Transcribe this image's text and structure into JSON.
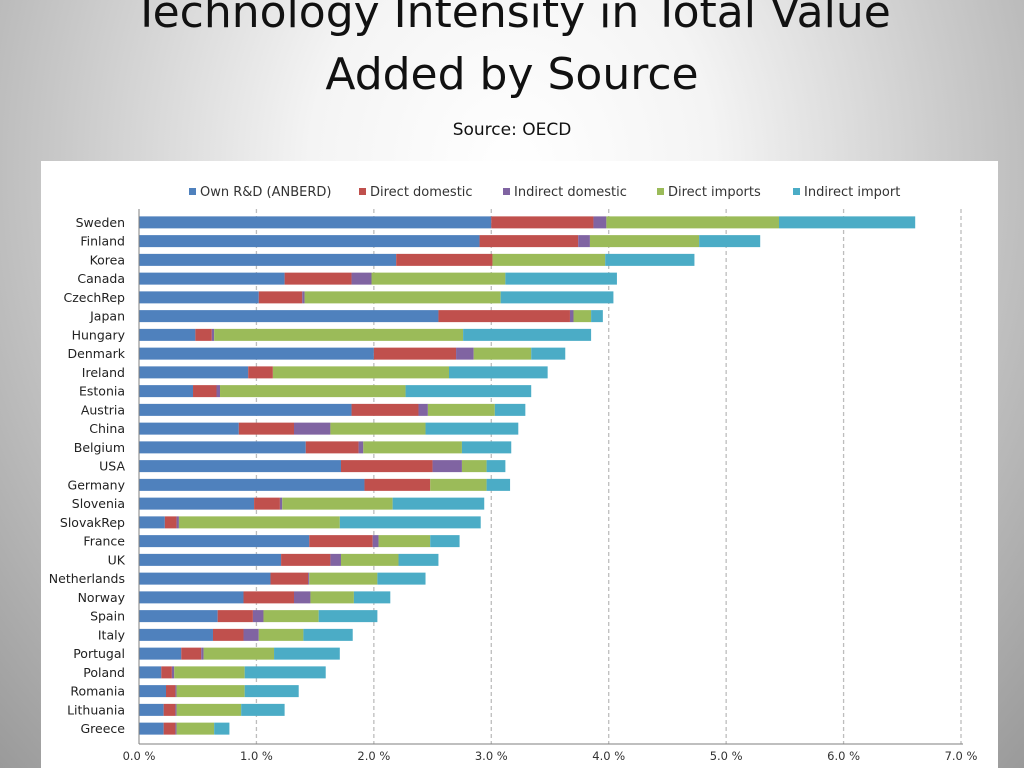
{
  "slide": {
    "title_line1": "Technology Intensity in Total Value",
    "title_line2": "Added by Source",
    "subtitle": "Source: OECD"
  },
  "chart_data": {
    "type": "bar",
    "orientation": "horizontal",
    "stacked": true,
    "categories": [
      "Sweden",
      "Finland",
      "Korea",
      "Canada",
      "CzechRep",
      "Japan",
      "Hungary",
      "Denmark",
      "Ireland",
      "Estonia",
      "Austria",
      "China",
      "Belgium",
      "USA",
      "Germany",
      "Slovenia",
      "SlovakRep",
      "France",
      "UK",
      "Netherlands",
      "Norway",
      "Spain",
      "Italy",
      "Portugal",
      "Poland",
      "Romania",
      "Lithuania",
      "Greece"
    ],
    "series": [
      {
        "name": "Own R&D (ANBERD)",
        "color": "#4f81bd",
        "values": [
          3.0,
          2.9,
          2.19,
          1.24,
          1.02,
          2.55,
          0.48,
          2.0,
          0.93,
          0.46,
          1.81,
          0.85,
          1.42,
          1.72,
          1.92,
          0.98,
          0.22,
          1.45,
          1.21,
          1.12,
          0.89,
          0.67,
          0.63,
          0.36,
          0.19,
          0.23,
          0.21,
          0.21
        ]
      },
      {
        "name": "Direct domestic",
        "color": "#c0504d",
        "values": [
          0.87,
          0.84,
          0.82,
          0.57,
          0.37,
          1.12,
          0.14,
          0.7,
          0.21,
          0.2,
          0.57,
          0.47,
          0.45,
          0.78,
          0.56,
          0.22,
          0.1,
          0.54,
          0.42,
          0.32,
          0.43,
          0.3,
          0.26,
          0.17,
          0.09,
          0.08,
          0.1,
          0.1
        ]
      },
      {
        "name": "Indirect domestic",
        "color": "#8064a2",
        "values": [
          0.11,
          0.1,
          0.0,
          0.17,
          0.02,
          0.03,
          0.02,
          0.15,
          0.0,
          0.03,
          0.08,
          0.31,
          0.04,
          0.25,
          0.0,
          0.02,
          0.02,
          0.05,
          0.09,
          0.01,
          0.14,
          0.09,
          0.13,
          0.02,
          0.02,
          0.01,
          0.01,
          0.01
        ]
      },
      {
        "name": "Direct imports",
        "color": "#9bbb59",
        "values": [
          1.47,
          0.93,
          0.96,
          1.14,
          1.67,
          0.15,
          2.12,
          0.49,
          1.5,
          1.58,
          0.57,
          0.81,
          0.84,
          0.21,
          0.48,
          0.94,
          1.37,
          0.44,
          0.49,
          0.58,
          0.37,
          0.47,
          0.38,
          0.6,
          0.6,
          0.58,
          0.55,
          0.32
        ]
      },
      {
        "name": "Indirect import",
        "color": "#4bacc6",
        "values": [
          1.16,
          0.52,
          0.76,
          0.95,
          0.96,
          0.1,
          1.09,
          0.29,
          0.84,
          1.07,
          0.26,
          0.79,
          0.42,
          0.16,
          0.2,
          0.78,
          1.2,
          0.25,
          0.34,
          0.41,
          0.31,
          0.5,
          0.42,
          0.56,
          0.69,
          0.46,
          0.37,
          0.13
        ]
      }
    ],
    "xlim": [
      0,
      7
    ],
    "x_ticks": [
      "0.0 %",
      "1.0 %",
      "2.0 %",
      "3.0 %",
      "4.0 %",
      "5.0 %",
      "6.0 %",
      "7.0 %"
    ],
    "x_tick_values": [
      0,
      1,
      2,
      3,
      4,
      5,
      6,
      7
    ],
    "grid": "vertical dashed",
    "legend_position": "top"
  }
}
